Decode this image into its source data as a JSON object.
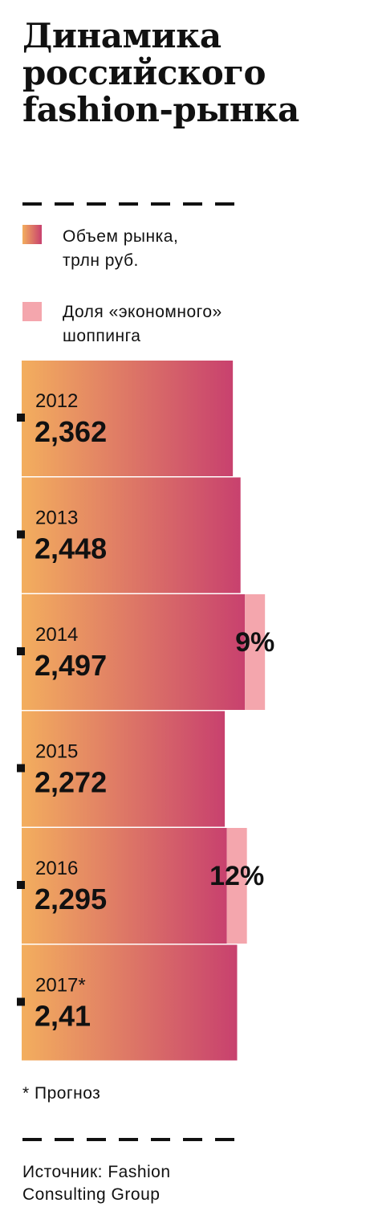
{
  "title": "Динамика российского fashion-рынка",
  "legend": [
    {
      "label": "Объем рынка,\nтрлн руб.",
      "kind": "gradient"
    },
    {
      "label": "Доля «экономного»\nшоппинга",
      "kind": "solid"
    }
  ],
  "colors": {
    "gradient_start": "#f3ae5e",
    "gradient_end": "#c8416e",
    "economy_share": "#f4a6ad",
    "text": "#111111"
  },
  "chart_data": {
    "type": "bar",
    "orientation": "horizontal",
    "categories": [
      "2012",
      "2013",
      "2014",
      "2015",
      "2016",
      "2017*"
    ],
    "series": [
      {
        "name": "Объем рынка, трлн руб.",
        "values": [
          2.362,
          2.448,
          2.497,
          2.272,
          2.295,
          2.41
        ],
        "labels": [
          "2,362",
          "2,448",
          "2,497",
          "2,272",
          "2,295",
          "2,41"
        ]
      },
      {
        "name": "Доля «экономного» шоппинга",
        "values": [
          null,
          null,
          9,
          null,
          12,
          null
        ],
        "labels": [
          "",
          "",
          "9%",
          "",
          "12%",
          ""
        ]
      }
    ]
  },
  "footnote": "* Прогноз",
  "source": "Источник: Fashion\nConsulting Group"
}
